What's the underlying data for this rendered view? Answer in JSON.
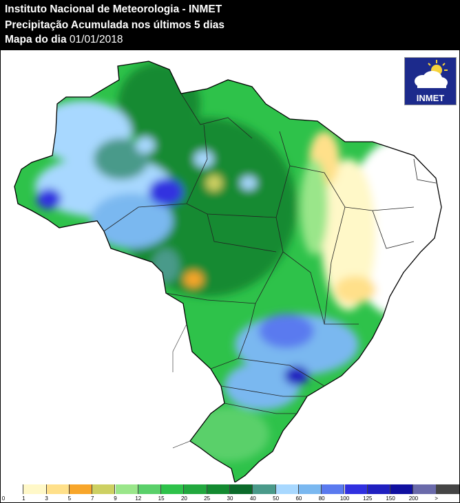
{
  "header": {
    "line1": "Instituto Nacional de Meteorologia - INMET",
    "line2": "Precipitação Acumulada nos últimos 5 dias",
    "line3_label": "Mapa do dia",
    "line3_date": "01/01/2018"
  },
  "logo": {
    "text": "INMET",
    "icon": "cloud-sun-icon"
  },
  "legend": {
    "colors": [
      "#ffffff",
      "#fff8c8",
      "#ffe08a",
      "#f8a62a",
      "#cdd062",
      "#9ae68a",
      "#5ad06a",
      "#2ec24a",
      "#22a83e",
      "#138a30",
      "#0b6a2a",
      "#4a9a8a",
      "#a8d8ff",
      "#7ab8f0",
      "#5a7aef",
      "#3030e0",
      "#2020c0",
      "#1010a0",
      "#6a6aaa",
      "#454545"
    ],
    "ticks": [
      "0",
      "1",
      "3",
      "5",
      "7",
      "9",
      "12",
      "15",
      "20",
      "25",
      "30",
      "40",
      "50",
      "60",
      "80",
      "100",
      "125",
      "150",
      "200",
      ">"
    ]
  }
}
